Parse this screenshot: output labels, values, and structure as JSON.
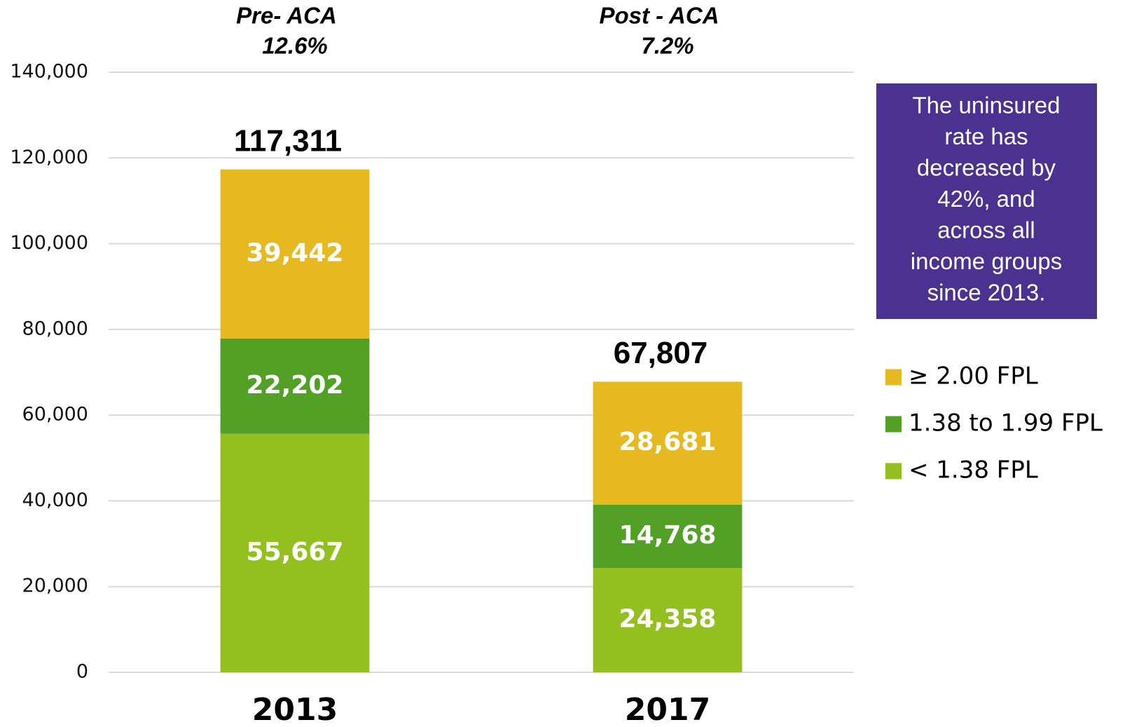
{
  "chart_data": {
    "type": "stacked_bar",
    "categories": [
      "2013",
      "2017"
    ],
    "series": [
      {
        "name": "< 1.38 FPL",
        "color": "#93c01f",
        "values": [
          55667,
          24358
        ],
        "value_labels": [
          "55,667",
          "24,358"
        ]
      },
      {
        "name": "1.38 to 1.99 FPL",
        "color": "#52a025",
        "values": [
          22202,
          14768
        ],
        "value_labels": [
          "22,202",
          "14,768"
        ]
      },
      {
        "name": "≥ 2.00 FPL",
        "color": "#e6b920",
        "values": [
          39442,
          28681
        ],
        "value_labels": [
          "39,442",
          "28,681"
        ]
      }
    ],
    "totals": [
      117311,
      67807
    ],
    "total_labels": [
      "117,311",
      "67,807"
    ],
    "period_labels": [
      [
        "Pre- ACA",
        "12.6%"
      ],
      [
        "Post - ACA",
        "7.2%"
      ]
    ],
    "annotation": [
      "The uninsured",
      "rate has",
      "decreased by",
      "42%, and",
      "across all",
      "income groups",
      "since 2013."
    ],
    "ylim": [
      0,
      140000
    ],
    "yticks": [
      0,
      {
        "value": 20000,
        "label": "20,000"
      },
      {
        "value": 40000,
        "label": "40,000"
      },
      {
        "value": 60000,
        "label": "60,000"
      },
      {
        "value": 80000,
        "label": "80,000"
      },
      {
        "value": 100000,
        "label": "100,000"
      },
      {
        "value": 120000,
        "label": "120,000"
      },
      {
        "value": 140000,
        "label": "140,000"
      }
    ],
    "grid": true,
    "legend": "right"
  }
}
